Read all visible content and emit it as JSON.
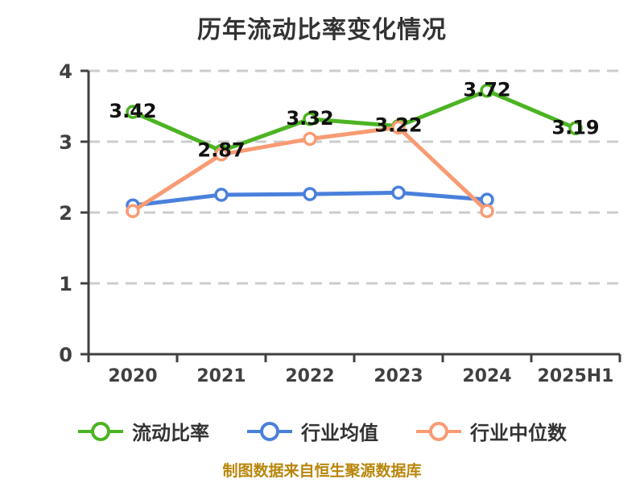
{
  "chart_data": {
    "type": "line",
    "title": "历年流动比率变化情况",
    "categories": [
      "2020",
      "2021",
      "2022",
      "2023",
      "2024",
      "2025H1"
    ],
    "series": [
      {
        "name": "流动比率",
        "color": "#4cb422",
        "marker": "circle-white-fill",
        "values": [
          3.42,
          2.87,
          3.32,
          3.22,
          3.72,
          3.19
        ],
        "point_labels": [
          "3.42",
          "2.87",
          "3.32",
          "3.22",
          "3.72",
          "3.19"
        ]
      },
      {
        "name": "行业均值",
        "color": "#4a80dc",
        "marker": "circle-white-fill",
        "values": [
          2.1,
          2.25,
          2.26,
          2.28,
          2.18,
          null
        ]
      },
      {
        "name": "行业中位数",
        "color": "#f89b73",
        "marker": "circle-white-fill",
        "values": [
          2.02,
          2.82,
          3.04,
          3.2,
          2.02,
          null
        ]
      }
    ],
    "ylim": [
      0,
      4
    ],
    "yticks": [
      0,
      1,
      2,
      3,
      4
    ],
    "xlabel": "",
    "ylabel": "",
    "grid": "horizontal-dashed",
    "legend_position": "bottom"
  },
  "footer_note": "制图数据来自恒生聚源数据库",
  "colors": {
    "background": "#ffffff",
    "title_text": "#333333",
    "axis": "#404040",
    "grid": "#cccccc",
    "data_label": "#111111",
    "legend_text": "#333333",
    "footer_text": "#b8860b"
  }
}
